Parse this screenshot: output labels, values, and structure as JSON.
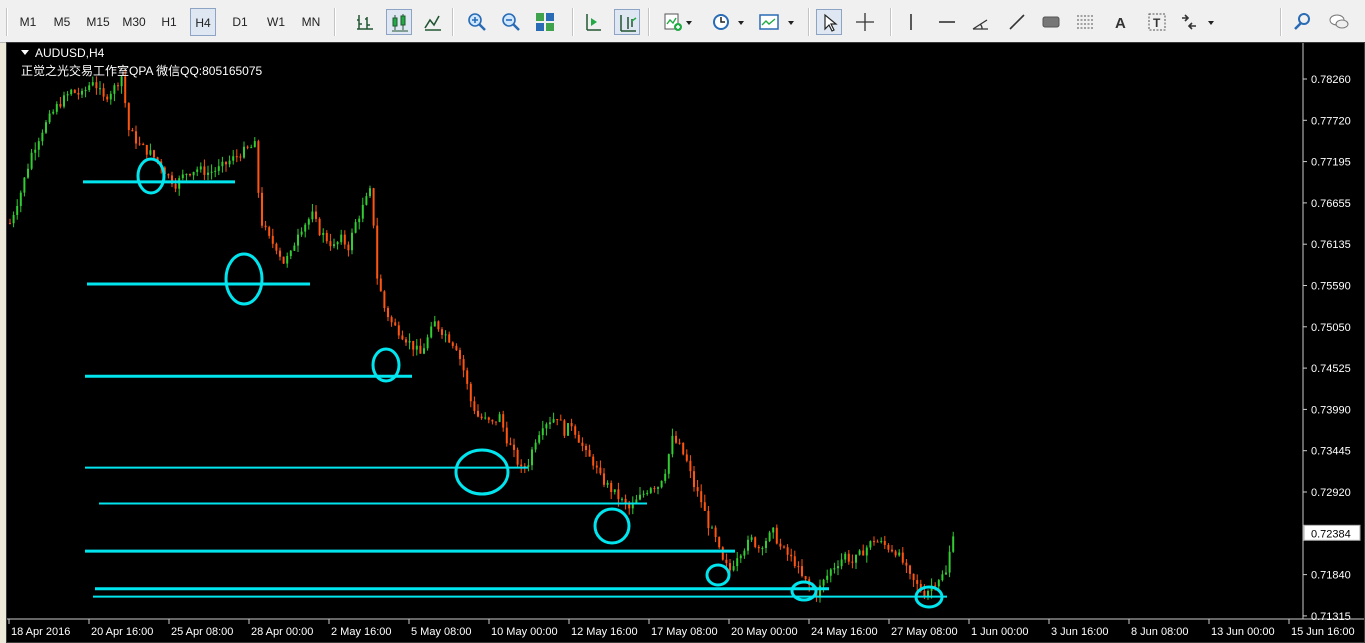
{
  "toolbar": {
    "timeframes": [
      "M1",
      "M5",
      "M15",
      "M30",
      "H1",
      "H4",
      "D1",
      "W1",
      "MN"
    ],
    "active_timeframe": "H4",
    "buttons": [
      {
        "name": "bar-chart-icon"
      },
      {
        "name": "candlestick-chart-icon"
      },
      {
        "name": "line-chart-icon"
      },
      {
        "name": "zoom-in-icon"
      },
      {
        "name": "zoom-out-icon"
      },
      {
        "name": "tile-windows-icon"
      },
      {
        "name": "chart-shift-icon"
      },
      {
        "name": "autoscroll-icon"
      },
      {
        "name": "indicators-icon"
      },
      {
        "name": "periods-clock-icon"
      },
      {
        "name": "templates-icon"
      },
      {
        "name": "cursor-icon"
      },
      {
        "name": "crosshair-icon"
      },
      {
        "name": "vertical-line-icon"
      },
      {
        "name": "horizontal-line-icon"
      },
      {
        "name": "angle-trendline-icon"
      },
      {
        "name": "trendline-icon"
      },
      {
        "name": "rectangle-icon"
      },
      {
        "name": "fibonacci-icon"
      },
      {
        "name": "text-icon"
      },
      {
        "name": "text-label-icon"
      },
      {
        "name": "arrows-icon"
      },
      {
        "name": "search-icon"
      },
      {
        "name": "chat-icon"
      }
    ]
  },
  "chart": {
    "symbol_title": "AUDUSD,H4",
    "subtitle": "正觉之光交易工作室QPA 微信QQ:805165075",
    "current_price_label": "0.72384"
  },
  "colors": {
    "background": "#000000",
    "bull_candle": "#33cc33",
    "bear_candle": "#ff5511",
    "levels": "#00e5ee",
    "axis_text": "#ffffff"
  },
  "chart_data": {
    "type": "candlestick",
    "symbol": "AUDUSD",
    "timeframe": "H4",
    "y_ticks": [
      "0.78260",
      "0.77720",
      "0.77195",
      "0.76655",
      "0.76135",
      "0.75590",
      "0.75050",
      "0.74525",
      "0.73990",
      "0.73445",
      "0.72920",
      "0.72384",
      "0.71840",
      "0.71315"
    ],
    "x_ticks": [
      "18 Apr 2016",
      "20 Apr 16:00",
      "25 Apr 08:00",
      "28 Apr 00:00",
      "2 May 16:00",
      "5 May 08:00",
      "10 May 00:00",
      "12 May 16:00",
      "17 May 08:00",
      "20 May 00:00",
      "24 May 16:00",
      "27 May 08:00",
      "1 Jun 00:00",
      "3 Jun 16:00",
      "8 Jun 08:00",
      "13 Jun 00:00",
      "15 Jun 16:00"
    ],
    "ylim": [
      0.711,
      0.785
    ],
    "price_path": [
      [
        0,
        0.764
      ],
      [
        3,
        0.768
      ],
      [
        6,
        0.773
      ],
      [
        9,
        0.776
      ],
      [
        13,
        0.779
      ],
      [
        17,
        0.781
      ],
      [
        20,
        0.7805
      ],
      [
        23,
        0.7825
      ],
      [
        26,
        0.78
      ],
      [
        29,
        0.7815
      ],
      [
        31,
        0.783
      ],
      [
        33,
        0.776
      ],
      [
        36,
        0.774
      ],
      [
        39,
        0.773
      ],
      [
        42,
        0.7715
      ],
      [
        44,
        0.77
      ],
      [
        46,
        0.769
      ],
      [
        49,
        0.7705
      ],
      [
        52,
        0.771
      ],
      [
        55,
        0.7705
      ],
      [
        58,
        0.771
      ],
      [
        61,
        0.772
      ],
      [
        64,
        0.773
      ],
      [
        66,
        0.7735
      ],
      [
        68,
        0.774
      ],
      [
        69,
        0.768
      ],
      [
        70,
        0.764
      ],
      [
        72,
        0.762
      ],
      [
        74,
        0.761
      ],
      [
        76,
        0.759
      ],
      [
        78,
        0.76
      ],
      [
        80,
        0.763
      ],
      [
        82,
        0.764
      ],
      [
        84,
        0.765
      ],
      [
        86,
        0.763
      ],
      [
        88,
        0.762
      ],
      [
        90,
        0.761
      ],
      [
        92,
        0.762
      ],
      [
        94,
        0.761
      ],
      [
        96,
        0.764
      ],
      [
        98,
        0.766
      ],
      [
        100,
        0.768
      ],
      [
        101,
        0.764
      ],
      [
        102,
        0.757
      ],
      [
        104,
        0.753
      ],
      [
        106,
        0.751
      ],
      [
        108,
        0.75
      ],
      [
        110,
        0.749
      ],
      [
        112,
        0.748
      ],
      [
        114,
        0.747
      ],
      [
        116,
        0.749
      ],
      [
        118,
        0.751
      ],
      [
        120,
        0.75
      ],
      [
        122,
        0.749
      ],
      [
        124,
        0.748
      ],
      [
        126,
        0.745
      ],
      [
        128,
        0.741
      ],
      [
        130,
        0.739
      ],
      [
        132,
        0.7385
      ],
      [
        134,
        0.738
      ],
      [
        136,
        0.739
      ],
      [
        138,
        0.736
      ],
      [
        140,
        0.734
      ],
      [
        142,
        0.732
      ],
      [
        144,
        0.733
      ],
      [
        146,
        0.736
      ],
      [
        148,
        0.738
      ],
      [
        150,
        0.7385
      ],
      [
        152,
        0.739
      ],
      [
        154,
        0.737
      ],
      [
        156,
        0.738
      ],
      [
        158,
        0.736
      ],
      [
        160,
        0.734
      ],
      [
        162,
        0.733
      ],
      [
        164,
        0.731
      ],
      [
        166,
        0.73
      ],
      [
        168,
        0.729
      ],
      [
        170,
        0.728
      ],
      [
        172,
        0.727
      ],
      [
        174,
        0.728
      ],
      [
        176,
        0.729
      ],
      [
        178,
        0.73
      ],
      [
        180,
        0.73
      ],
      [
        182,
        0.732
      ],
      [
        184,
        0.736
      ],
      [
        186,
        0.735
      ],
      [
        188,
        0.733
      ],
      [
        190,
        0.73
      ],
      [
        192,
        0.728
      ],
      [
        194,
        0.725
      ],
      [
        196,
        0.723
      ],
      [
        198,
        0.72
      ],
      [
        200,
        0.719
      ],
      [
        202,
        0.721
      ],
      [
        204,
        0.722
      ],
      [
        206,
        0.723
      ],
      [
        208,
        0.722
      ],
      [
        210,
        0.723
      ],
      [
        212,
        0.724
      ],
      [
        214,
        0.722
      ],
      [
        216,
        0.721
      ],
      [
        218,
        0.72
      ],
      [
        220,
        0.718
      ],
      [
        222,
        0.717
      ],
      [
        224,
        0.716
      ],
      [
        226,
        0.7175
      ],
      [
        228,
        0.719
      ],
      [
        230,
        0.72
      ],
      [
        232,
        0.721
      ],
      [
        234,
        0.72
      ],
      [
        236,
        0.721
      ],
      [
        238,
        0.722
      ],
      [
        240,
        0.723
      ],
      [
        242,
        0.7225
      ],
      [
        244,
        0.722
      ],
      [
        246,
        0.7215
      ],
      [
        248,
        0.72
      ],
      [
        250,
        0.718
      ],
      [
        252,
        0.717
      ],
      [
        254,
        0.716
      ],
      [
        256,
        0.717
      ],
      [
        258,
        0.718
      ],
      [
        260,
        0.7185
      ],
      [
        262,
        0.724
      ]
    ],
    "support_levels": [
      0.7693,
      0.7561,
      0.7442,
      0.7323,
      0.7277,
      0.7215,
      0.7166,
      0.7156
    ],
    "marked_circles": 9
  }
}
